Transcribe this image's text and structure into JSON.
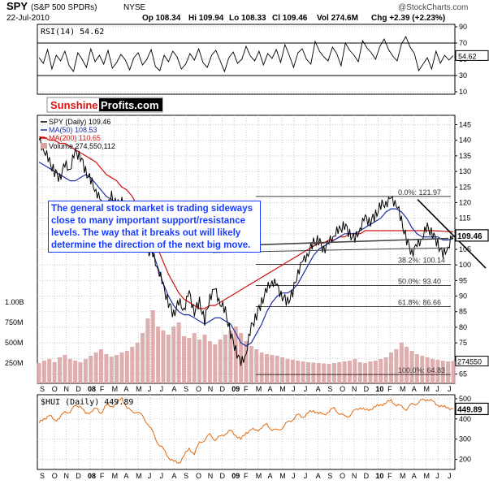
{
  "header": {
    "symbol": "SPY",
    "name": "(S&P 500 SPDRs)",
    "exchange": "NYSE",
    "date": "22-Jul-2010",
    "op": "Op 108.34",
    "hi": "Hi 109.94",
    "lo": "Lo 108.33",
    "cl": "Cl 109.46",
    "vol": "Vol 274.6M",
    "chg": "Chg +2.39 (+2.23%)",
    "credit": "@StockCharts.com"
  },
  "logo": {
    "part1": "Sunshine",
    "part2": "Profits.com"
  },
  "annotation": "The general stock market is trading sideways close to many important support/resistance levels. The way that it breaks out will likely determine the direction of the next big move.",
  "colors": {
    "price": "#000000",
    "ma50": "#1f2fa0",
    "ma200": "#d01010",
    "volume": "#d9a0a0",
    "hui": "#e06a10",
    "grid": "#c8c8c8",
    "annotation_text": "#1a3cff",
    "logo_red": "#e01010"
  },
  "chart_data": [
    {
      "type": "line",
      "title": "RSI(14) 54.62",
      "y_ticks": [
        10,
        30,
        50,
        70,
        90
      ],
      "reference_lines": [
        30,
        70
      ],
      "last_value_label": "54.62",
      "ylim": [
        10,
        90
      ],
      "series": [
        {
          "name": "RSI(14)",
          "values": [
            52,
            45,
            62,
            38,
            55,
            48,
            60,
            42,
            35,
            58,
            50,
            40,
            63,
            47,
            55,
            44,
            61,
            39,
            46,
            56,
            49,
            37,
            52,
            58,
            43,
            50,
            62,
            41,
            36,
            55,
            47,
            60,
            53,
            38,
            44,
            57,
            49,
            63,
            46,
            40,
            55,
            61,
            48,
            35,
            52,
            59,
            45,
            50,
            66,
            54,
            48,
            60,
            43,
            57,
            51,
            62,
            46,
            68,
            55,
            40,
            58,
            63,
            50,
            44,
            72,
            60,
            53,
            48,
            65,
            57,
            42,
            70,
            61,
            55,
            47,
            73,
            64,
            58,
            50,
            66,
            75,
            62,
            54,
            48,
            69,
            78,
            65,
            57,
            36,
            44,
            52,
            38,
            60,
            45,
            55,
            49,
            54.62
          ]
        }
      ]
    },
    {
      "type": "line",
      "title": "SPY (Daily) 109.46",
      "y_ticks": [
        65,
        70,
        75,
        80,
        85,
        90,
        95,
        100,
        105,
        110,
        115,
        120,
        125,
        130,
        135,
        140,
        145
      ],
      "ylim": [
        62,
        148
      ],
      "x_ticks": [
        "S",
        "O",
        "N",
        "D",
        "08",
        "F",
        "M",
        "A",
        "M",
        "J",
        "J",
        "A",
        "S",
        "O",
        "N",
        "D",
        "09",
        "F",
        "M",
        "A",
        "M",
        "J",
        "J",
        "A",
        "S",
        "O",
        "N",
        "D",
        "10",
        "F",
        "M",
        "A",
        "M",
        "J",
        "J"
      ],
      "last_value_label": "109.46",
      "legend": [
        {
          "label": "SPY (Daily) 109.46",
          "color": "#000000"
        },
        {
          "label": "MA(50) 108.53",
          "color": "#1f2fa0"
        },
        {
          "label": "MA(200) 110.65",
          "color": "#d01010"
        },
        {
          "label": "Volume 274,550,112",
          "color": "#d9a0a0"
        }
      ],
      "volume_axis": {
        "ticks": [
          "250M",
          "500M",
          "750M",
          "1.00B"
        ],
        "last_label": "274550"
      },
      "fibonacci": [
        {
          "label": "0.0%: 121.97",
          "value": 121.97
        },
        {
          "label": "38.2%: 100.14",
          "value": 100.14
        },
        {
          "label": "50.0%: 93.40",
          "value": 93.4
        },
        {
          "label": "61.8%: 86.66",
          "value": 86.66
        },
        {
          "label": "100.0%: 64.83",
          "value": 64.83
        }
      ],
      "series": [
        {
          "name": "SPY (Daily)",
          "values": [
            140,
            137,
            133,
            130,
            128,
            132,
            131,
            136,
            135,
            130,
            127,
            124,
            120,
            117,
            122,
            119,
            121,
            118,
            114,
            112,
            108,
            105,
            103,
            99,
            93,
            88,
            84,
            88,
            86,
            91,
            85,
            88,
            82,
            90,
            92,
            88,
            85,
            78,
            73,
            68,
            72,
            80,
            84,
            88,
            92,
            95,
            93,
            90,
            88,
            91,
            98,
            101,
            104,
            107,
            108,
            105,
            107,
            110,
            111,
            113,
            110,
            108,
            112,
            115,
            114,
            116,
            119,
            120,
            121,
            120,
            114,
            108,
            104,
            106,
            109,
            112,
            110,
            107,
            103,
            106,
            109.46
          ]
        },
        {
          "name": "MA(50)",
          "values": [
            133,
            132,
            131,
            130,
            129,
            128,
            127,
            127,
            128,
            129,
            128,
            126,
            124,
            122,
            121,
            120,
            119,
            117,
            115,
            113,
            111,
            108,
            104,
            99,
            94,
            90,
            87,
            85,
            84,
            84,
            83,
            82,
            81,
            82,
            83,
            83,
            82,
            81,
            78,
            75,
            74,
            75,
            78,
            81,
            85,
            88,
            90,
            91,
            91,
            92,
            94,
            97,
            100,
            103,
            105,
            106,
            107,
            108,
            109,
            110,
            110,
            110,
            111,
            112,
            113,
            114,
            115,
            117,
            118,
            118,
            117,
            115,
            112,
            110,
            109,
            109,
            109,
            109,
            108,
            108,
            108.53
          ]
        },
        {
          "name": "MA(200)",
          "values": [
            141,
            141,
            140,
            140,
            139,
            139,
            138,
            137,
            136,
            135,
            134,
            133,
            131,
            129,
            128,
            127,
            125,
            124,
            122,
            119,
            116,
            112,
            109,
            105,
            101,
            97,
            94,
            91,
            89,
            88,
            87,
            86,
            86,
            87,
            87,
            88,
            89,
            90,
            91,
            92,
            93,
            94,
            95,
            96,
            97,
            98,
            99,
            100,
            101,
            102,
            103,
            104,
            105,
            106,
            107,
            107,
            108,
            108,
            109,
            109,
            110,
            110,
            110,
            111,
            111,
            111,
            111,
            111,
            111,
            111,
            111,
            111,
            111,
            111,
            111,
            111,
            111,
            110.9,
            110.8,
            110.7,
            110.65
          ]
        },
        {
          "name": "Volume (M)",
          "values": [
            250,
            280,
            300,
            260,
            320,
            350,
            300,
            280,
            260,
            300,
            340,
            380,
            420,
            360,
            330,
            350,
            380,
            400,
            450,
            500,
            620,
            800,
            900,
            700,
            650,
            600,
            700,
            750,
            580,
            560,
            620,
            540,
            600,
            520,
            480,
            540,
            600,
            650,
            700,
            620,
            520,
            460,
            420,
            380,
            360,
            350,
            340,
            320,
            300,
            290,
            280,
            270,
            260,
            255,
            250,
            245,
            240,
            250,
            260,
            270,
            280,
            300,
            260,
            250,
            270,
            280,
            300,
            320,
            380,
            420,
            500,
            450,
            400,
            360,
            340,
            320,
            300,
            290,
            280,
            270,
            274.55
          ]
        }
      ]
    },
    {
      "type": "line",
      "title": "$HUI (Daily) 449.89",
      "y_ticks": [
        200,
        300,
        400,
        500
      ],
      "ylim": [
        150,
        520
      ],
      "x_ticks": [
        "S",
        "O",
        "N",
        "D",
        "08",
        "F",
        "M",
        "A",
        "M",
        "J",
        "J",
        "A",
        "S",
        "O",
        "N",
        "D",
        "09",
        "F",
        "M",
        "A",
        "M",
        "J",
        "J",
        "A",
        "S",
        "O",
        "N",
        "D",
        "10",
        "F",
        "M",
        "A",
        "M",
        "J",
        "J"
      ],
      "last_value_label": "449.89",
      "series": [
        {
          "name": "$HUI (Daily)",
          "values": [
            380,
            400,
            420,
            390,
            410,
            430,
            440,
            460,
            470,
            420,
            440,
            450,
            430,
            470,
            460,
            480,
            500,
            460,
            430,
            440,
            410,
            380,
            330,
            280,
            250,
            210,
            190,
            180,
            220,
            250,
            230,
            280,
            300,
            320,
            300,
            310,
            330,
            340,
            320,
            300,
            330,
            350,
            340,
            360,
            370,
            350,
            340,
            360,
            380,
            400,
            420,
            410,
            430,
            440,
            430,
            420,
            440,
            450,
            430,
            410,
            420,
            440,
            460,
            440,
            450,
            460,
            470,
            480,
            490,
            470,
            460,
            450,
            470,
            480,
            490,
            500,
            485,
            470,
            460,
            455,
            449.89
          ]
        }
      ]
    }
  ]
}
